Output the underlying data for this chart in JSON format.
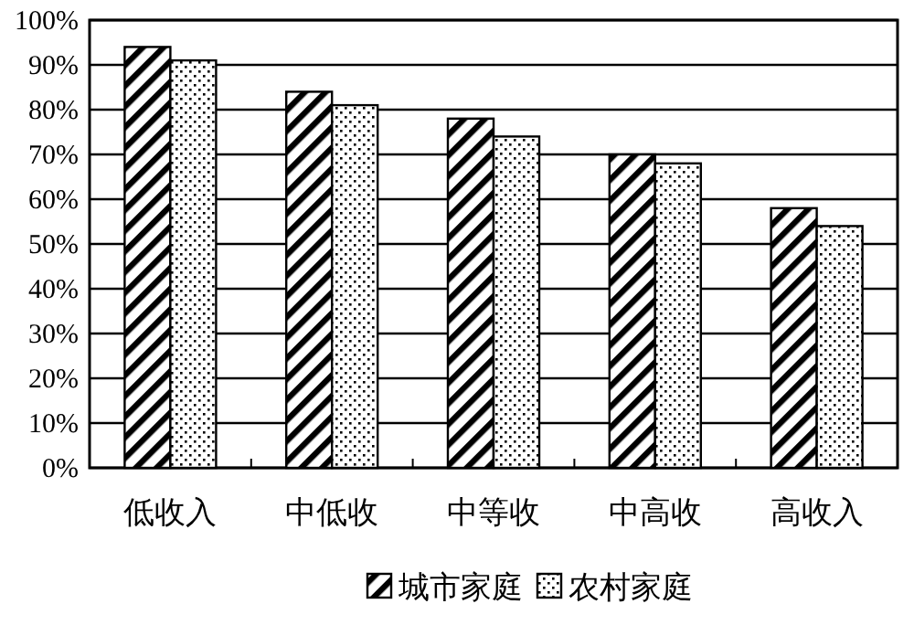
{
  "chart_data": {
    "type": "bar",
    "categories": [
      "低收入",
      "中低收",
      "中等收",
      "中高收",
      "高收入"
    ],
    "series": [
      {
        "name": "城市家庭",
        "color": "#000000",
        "values": [
          94,
          84,
          78,
          70,
          58
        ]
      },
      {
        "name": "农村家庭",
        "color": "#000000",
        "values": [
          91,
          81,
          74,
          68,
          54
        ]
      }
    ],
    "ylim": [
      0,
      100
    ],
    "yticks": [
      {
        "value": 0,
        "label": "0%"
      },
      {
        "value": 10,
        "label": "10%"
      },
      {
        "value": 20,
        "label": "20%"
      },
      {
        "value": 30,
        "label": "30%"
      },
      {
        "value": 40,
        "label": "40%"
      },
      {
        "value": 50,
        "label": "50%"
      },
      {
        "value": 60,
        "label": "60%"
      },
      {
        "value": 70,
        "label": "70%"
      },
      {
        "value": 80,
        "label": "80%"
      },
      {
        "value": 90,
        "label": "90%"
      },
      {
        "value": 100,
        "label": "100%"
      }
    ],
    "grid": "y",
    "legend": "bottom"
  }
}
